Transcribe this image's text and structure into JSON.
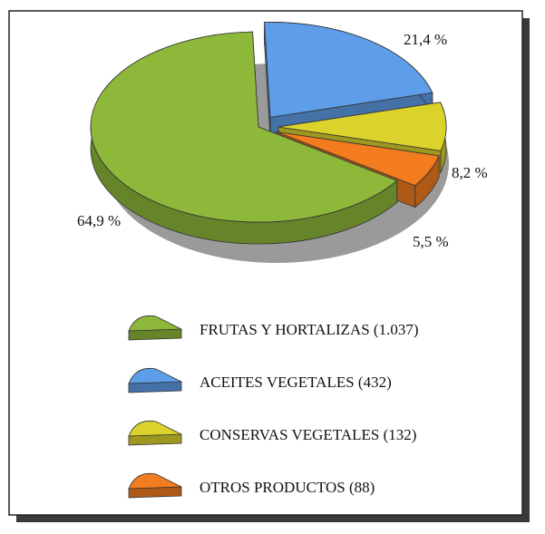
{
  "chart_data": {
    "type": "pie",
    "categories": [
      "FRUTAS Y HORTALIZAS (1.037)",
      "ACEITES VEGETALES (432)",
      "CONSERVAS VEGETALES (132)",
      "OTROS PRODUCTOS (88)"
    ],
    "values": [
      64.9,
      21.4,
      8.2,
      5.5
    ],
    "value_labels": [
      "64,9 %",
      "21,4 %",
      "8,2 %",
      "5,5 %"
    ],
    "colors": [
      "#8db83a",
      "#5e9ee8",
      "#dcd22c",
      "#f27c1e"
    ]
  }
}
